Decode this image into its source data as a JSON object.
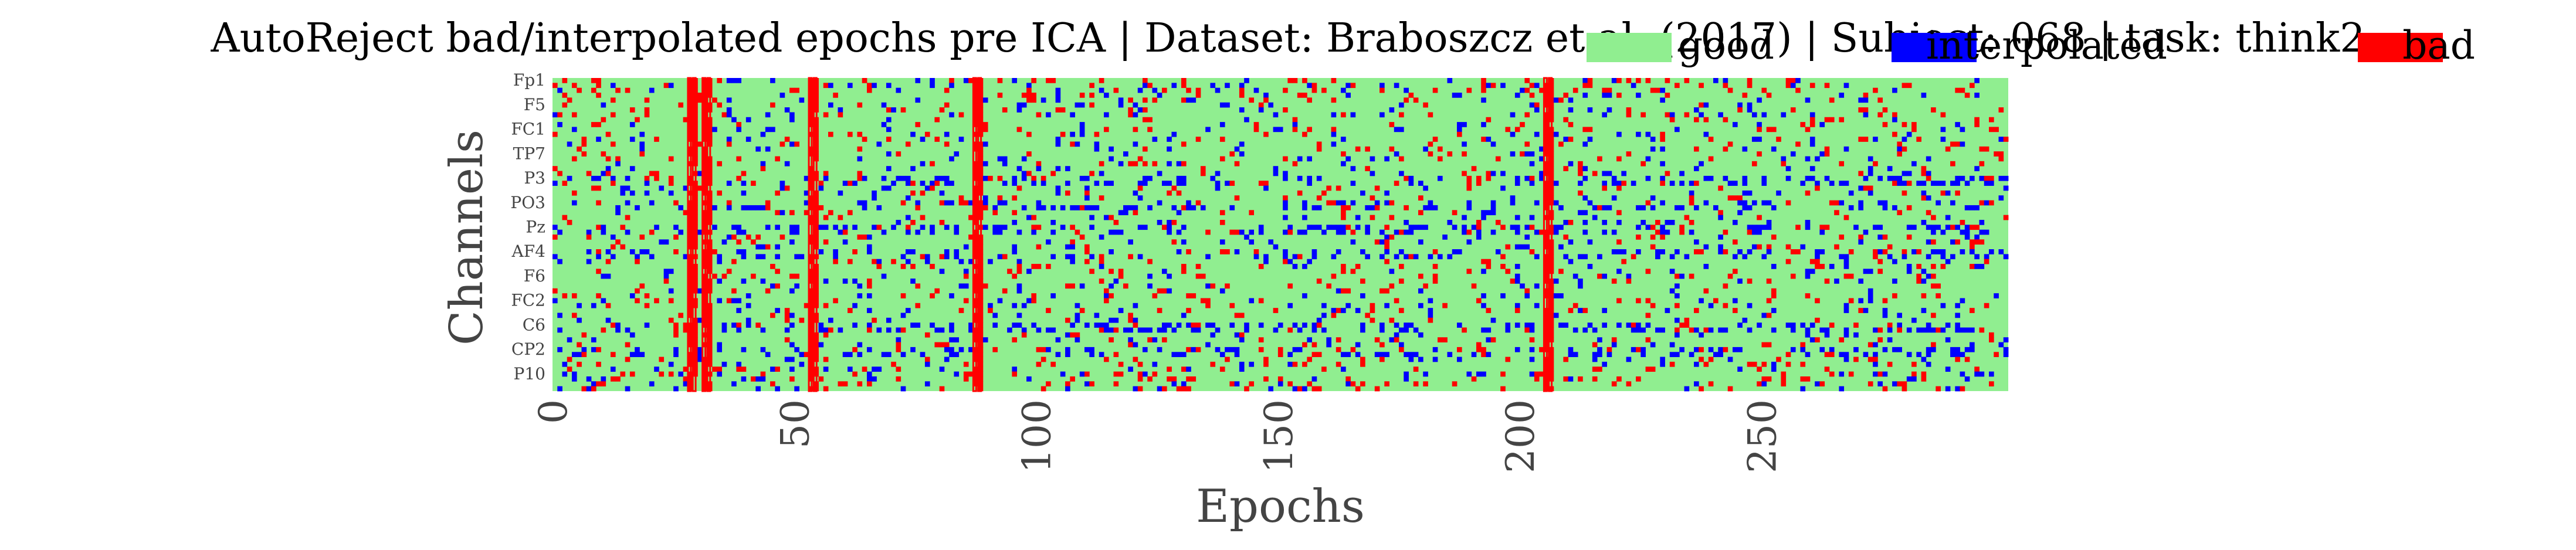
{
  "chart_data": {
    "type": "heatmap",
    "title": "AutoReject bad/interpolated epochs pre ICA | Dataset: Braboszcz et al. (2017) | Subject: 068 | task: think2",
    "xlabel": "Epochs",
    "ylabel": "Channels",
    "xlim": [
      0,
      301
    ],
    "xticks": [
      0,
      50,
      100,
      150,
      200,
      250
    ],
    "ytick_labels": [
      "Fp1",
      "F5",
      "FC1",
      "TP7",
      "P3",
      "PO3",
      "Pz",
      "AF4",
      "F6",
      "FC2",
      "C6",
      "CP2",
      "P10"
    ],
    "n_epochs": 301,
    "n_channels": 64,
    "legend": [
      {
        "label": "good",
        "color": "#90ee90"
      },
      {
        "label": "interpolated",
        "color": "#0000ff"
      },
      {
        "label": "bad",
        "color": "#ff0000"
      }
    ],
    "legend_position": "top-right",
    "colors": {
      "good": "#90ee90",
      "interpolated": "#0000ff",
      "bad": "#ff0000"
    },
    "fully_bad_epochs": [
      28,
      29,
      31,
      32,
      53,
      54,
      87,
      88,
      205,
      206
    ],
    "frequent_interpolated_channels": [
      "P3",
      "PO3",
      "Pz",
      "AF4",
      "C6",
      "CP2"
    ]
  }
}
